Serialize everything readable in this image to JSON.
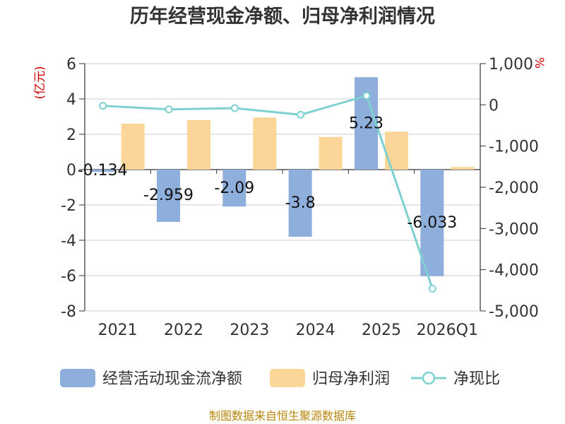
{
  "chart_data": {
    "type": "bar+line",
    "title": "历年经营现金净额、归母净利润情况",
    "categories": [
      "2021",
      "2022",
      "2023",
      "2024",
      "2025",
      "2026Q1"
    ],
    "y_left": {
      "unit": "(亿元)",
      "lim": [
        -8,
        6
      ],
      "ticks": [
        "6",
        "4",
        "2",
        "0",
        "-2",
        "-4",
        "-6",
        "-8"
      ]
    },
    "y_right": {
      "unit": "%",
      "lim": [
        -5000,
        1000
      ],
      "ticks": [
        "1,000",
        "0",
        "-1,000",
        "-2,000",
        "-3,000",
        "-4,000",
        "-5,000"
      ]
    },
    "series": [
      {
        "name": "经营活动现金流净额",
        "type": "bar",
        "axis": "left",
        "color": "#8eaedb",
        "values": [
          -0.134,
          -2.959,
          -2.09,
          -3.8,
          5.23,
          -6.033
        ],
        "labels": [
          "-0.134",
          "-2.959",
          "-2.09",
          "-3.8",
          "5.23",
          "-6.033"
        ]
      },
      {
        "name": "归母净利润",
        "type": "bar",
        "axis": "left",
        "color": "#fcd699",
        "values": [
          2.6,
          2.8,
          2.95,
          1.85,
          2.15,
          0.15
        ]
      },
      {
        "name": "净现比",
        "type": "line",
        "axis": "right",
        "color": "#7fd0d0",
        "values": [
          -25,
          -110,
          -80,
          -240,
          220,
          -4460
        ]
      }
    ]
  },
  "source": "制图数据来自恒生聚源数据库"
}
